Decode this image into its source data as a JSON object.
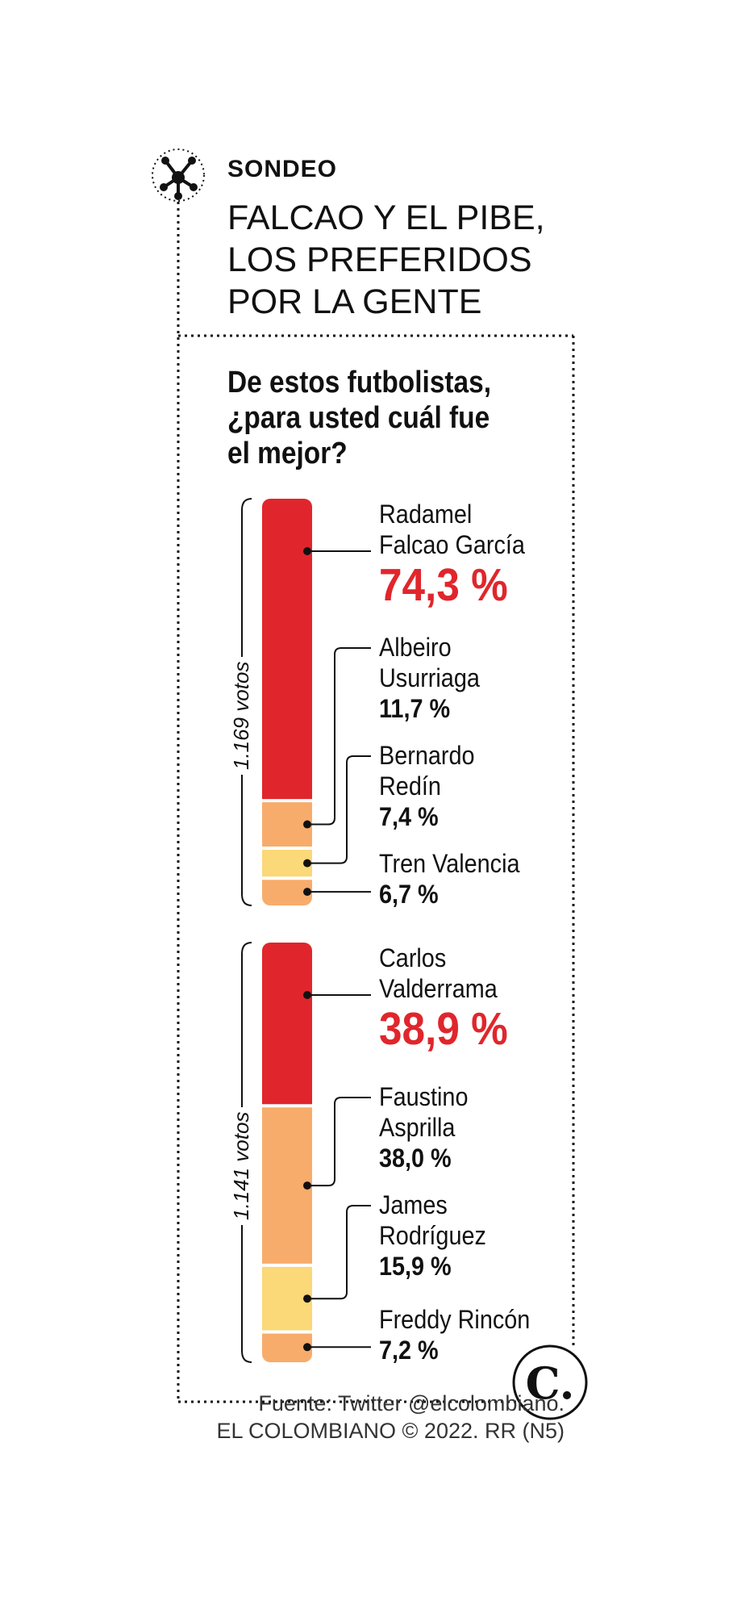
{
  "kicker": "SONDEO",
  "headline_lines": [
    "FALCAO Y EL PIBE,",
    "LOS PREFERIDOS",
    "POR LA GENTE"
  ],
  "question_lines": [
    "De estos futbolistas,",
    "¿para usted cuál fue",
    "el mejor?"
  ],
  "colors": {
    "red": "#e0262c",
    "orange": "#f8ac6b",
    "yellow": "#fbd878",
    "accent": "#e0262c"
  },
  "chart_data": [
    {
      "type": "bar",
      "stacked": true,
      "total_label": "1.169 votos",
      "categories": [
        "Radamel Falcao García",
        "Albeiro Usurriaga",
        "Bernardo Redín",
        "Tren Valencia"
      ],
      "name_lines": [
        [
          "Radamel",
          "Falcao García"
        ],
        [
          "Albeiro",
          "Usurriaga"
        ],
        [
          "Bernardo",
          "Redín"
        ],
        [
          "Tren Valencia"
        ]
      ],
      "values": [
        74.3,
        11.7,
        7.4,
        6.7
      ],
      "value_labels": [
        "74,3 %",
        "11,7 %",
        "7,4 %",
        "6,7 %"
      ],
      "unit": "%",
      "segment_colors": [
        "#e0262c",
        "#f8ac6b",
        "#fbd878",
        "#f8ac6b"
      ]
    },
    {
      "type": "bar",
      "stacked": true,
      "total_label": "1.141 votos",
      "categories": [
        "Carlos Valderrama",
        "Faustino Asprilla",
        "James Rodríguez",
        "Freddy Rincón"
      ],
      "name_lines": [
        [
          "Carlos",
          "Valderrama"
        ],
        [
          "Faustino",
          "Asprilla"
        ],
        [
          "James",
          "Rodríguez"
        ],
        [
          "Freddy Rincón"
        ]
      ],
      "values": [
        38.9,
        38.0,
        15.9,
        7.2
      ],
      "value_labels": [
        "38,9 %",
        "38,0 %",
        "15,9 %",
        "7,2 %"
      ],
      "unit": "%",
      "segment_colors": [
        "#e0262c",
        "#f8ac6b",
        "#fbd878",
        "#f8ac6b"
      ]
    }
  ],
  "source_lines": [
    "Fuente: Twitter @elcolombiano.",
    "EL COLOMBIANO © 2022. RR (N5)"
  ],
  "logo_letter": "C."
}
